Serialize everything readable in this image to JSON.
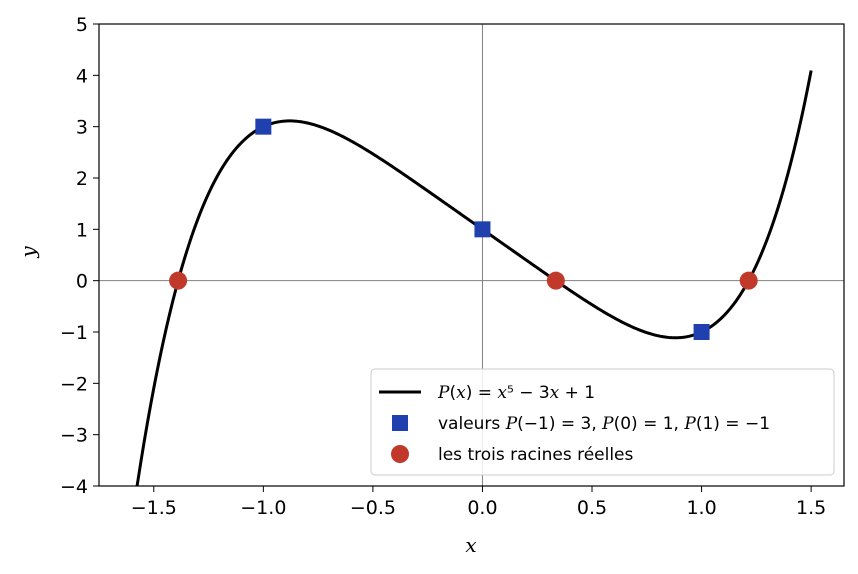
{
  "chart_data": {
    "type": "line",
    "xlabel": "x",
    "ylabel": "y",
    "xlim": [
      -1.75,
      1.65
    ],
    "ylim": [
      -4,
      5
    ],
    "xticks": [
      -1.5,
      -1.0,
      -0.5,
      0.0,
      0.5,
      1.0,
      1.5
    ],
    "xtick_labels": [
      "−1.5",
      "−1.0",
      "−0.5",
      "0.0",
      "0.5",
      "1.0",
      "1.5"
    ],
    "yticks": [
      -4,
      -3,
      -2,
      -1,
      0,
      1,
      2,
      3,
      4,
      5
    ],
    "ytick_labels": [
      "−4",
      "−3",
      "−2",
      "−1",
      "0",
      "1",
      "2",
      "3",
      "4",
      "5"
    ],
    "grid": false,
    "reference_lines": {
      "x": 0,
      "y": 0,
      "color": "#808080"
    },
    "curve": {
      "expression": "x^5 - 3x + 1",
      "coefficients_desc": [
        1,
        0,
        0,
        0,
        -3,
        1
      ],
      "x_range": [
        -1.6,
        1.5
      ],
      "color": "#000000"
    },
    "series": [
      {
        "name": "valeurs P(−1) = 3, P(0) = 1, P(1) = −1",
        "marker": "square",
        "color": "#2040b0",
        "points": [
          [
            -1.0,
            3
          ],
          [
            0.0,
            1
          ],
          [
            1.0,
            -1
          ]
        ]
      },
      {
        "name": "les trois racines réelles",
        "marker": "circle",
        "color": "#c0392b",
        "points": [
          [
            -1.389,
            0
          ],
          [
            0.335,
            0
          ],
          [
            1.215,
            0
          ]
        ]
      }
    ],
    "legend": {
      "placement": "lower-right",
      "entries": [
        {
          "kind": "line",
          "color": "#000000",
          "label_parts": [
            [
              "P",
              true
            ],
            [
              "(",
              false
            ],
            [
              "x",
              true
            ],
            [
              ") = ",
              false
            ],
            [
              "x",
              true
            ],
            [
              "⁵ − 3",
              false
            ],
            [
              "x",
              true
            ],
            [
              " + 1",
              false
            ]
          ]
        },
        {
          "kind": "square",
          "color": "#2040b0",
          "label_parts": [
            [
              "valeurs ",
              false
            ],
            [
              "P",
              true
            ],
            [
              "(−1) = 3, ",
              false
            ],
            [
              "P",
              true
            ],
            [
              "(0) = 1, ",
              false
            ],
            [
              "P",
              true
            ],
            [
              "(1) = −1",
              false
            ]
          ]
        },
        {
          "kind": "circle",
          "color": "#c0392b",
          "label_parts": [
            [
              "les trois racines réelles",
              false
            ]
          ]
        }
      ]
    }
  }
}
